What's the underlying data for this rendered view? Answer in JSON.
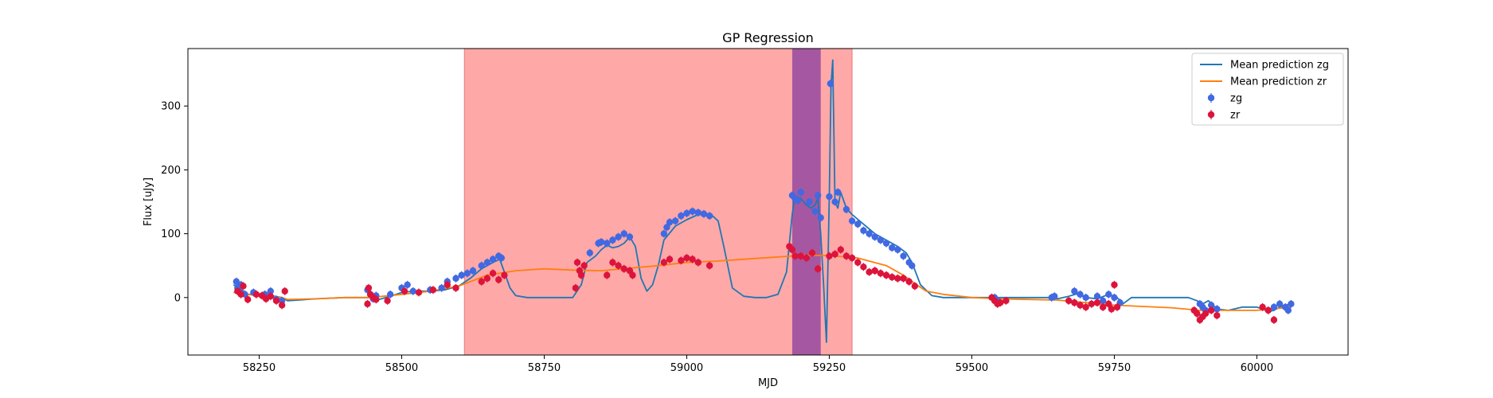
{
  "chart_data": {
    "type": "scatter",
    "title": "GP Regression",
    "xlabel": "MJD",
    "ylabel": "Flux [uJy]",
    "xlim": [
      58125,
      60160
    ],
    "ylim": [
      -90,
      390
    ],
    "xticks": [
      58250,
      58500,
      58750,
      59000,
      59250,
      59500,
      59750,
      60000
    ],
    "yticks": [
      0,
      100,
      200,
      300
    ],
    "grid": false,
    "legend_position": "top-right",
    "colors": {
      "zg_line": "#1f77b4",
      "zr_line": "#ff7f0e",
      "zg_points": "#4169e1",
      "zr_points": "#dc143c",
      "span_red": "#ff6666",
      "span_purple": "#9b4fa0"
    },
    "shaded_regions": [
      {
        "x0": 58610,
        "x1": 59290,
        "color": "#ff9999"
      },
      {
        "x0": 59185,
        "x1": 59235,
        "color": "#9b4fa0"
      }
    ],
    "legend": [
      {
        "label": "Mean prediction zg",
        "kind": "line",
        "color": "#1f77b4"
      },
      {
        "label": "Mean prediction zr",
        "kind": "line",
        "color": "#ff7f0e"
      },
      {
        "label": "zg",
        "kind": "errorbar",
        "color": "#4169e1"
      },
      {
        "label": "zr",
        "kind": "errorbar",
        "color": "#dc143c"
      }
    ],
    "series": [
      {
        "name": "Mean prediction zg",
        "kind": "line",
        "color": "#1f77b4",
        "x": [
          58205,
          58215,
          58230,
          58250,
          58270,
          58290,
          58300,
          58350,
          58400,
          58445,
          58460,
          58480,
          58500,
          58520,
          58550,
          58575,
          58600,
          58620,
          58640,
          58660,
          58672,
          58680,
          58690,
          58700,
          58720,
          58750,
          58780,
          58800,
          58815,
          58825,
          58840,
          58850,
          58860,
          58870,
          58880,
          58890,
          58900,
          58910,
          58920,
          58930,
          58940,
          58950,
          58960,
          58980,
          59000,
          59020,
          59035,
          59045,
          59055,
          59065,
          59080,
          59100,
          59120,
          59140,
          59160,
          59175,
          59185,
          59190,
          59200,
          59210,
          59218,
          59225,
          59230,
          59235,
          59240,
          59245,
          59250,
          59253,
          59256,
          59260,
          59265,
          59270,
          59280,
          59290,
          59310,
          59330,
          59350,
          59370,
          59385,
          59395,
          59410,
          59430,
          59450,
          59480,
          59500,
          59540,
          59600,
          59640,
          59650,
          59670,
          59685,
          59700,
          59720,
          59740,
          59755,
          59765,
          59780,
          59800,
          59850,
          59880,
          59895,
          59905,
          59915,
          59930,
          59950,
          59975,
          60000,
          60010,
          60020,
          60030,
          60040,
          60050,
          60060
        ],
        "y": [
          20,
          15,
          5,
          5,
          3,
          0,
          -5,
          -2,
          0,
          0,
          -3,
          2,
          8,
          10,
          10,
          12,
          18,
          30,
          45,
          55,
          60,
          40,
          15,
          3,
          0,
          0,
          0,
          0,
          20,
          55,
          65,
          75,
          82,
          78,
          80,
          85,
          95,
          80,
          30,
          10,
          20,
          50,
          90,
          112,
          122,
          130,
          130,
          128,
          120,
          80,
          15,
          2,
          0,
          0,
          5,
          40,
          130,
          160,
          155,
          145,
          140,
          145,
          155,
          100,
          20,
          -70,
          160,
          330,
          372,
          150,
          140,
          165,
          140,
          130,
          115,
          100,
          90,
          80,
          70,
          55,
          20,
          3,
          0,
          0,
          0,
          0,
          0,
          0,
          -2,
          2,
          6,
          0,
          -2,
          5,
          0,
          -10,
          0,
          0,
          0,
          0,
          -5,
          -10,
          -5,
          -18,
          -20,
          -15,
          -15,
          -18,
          -22,
          -20,
          -15,
          -12,
          -10
        ]
      },
      {
        "name": "Mean prediction zr",
        "kind": "line",
        "color": "#ff7f0e",
        "x": [
          58205,
          58230,
          58260,
          58290,
          58300,
          58350,
          58400,
          58445,
          58500,
          58550,
          58600,
          58650,
          58700,
          58750,
          58800,
          58850,
          58900,
          58950,
          59000,
          59050,
          59100,
          59150,
          59200,
          59250,
          59300,
          59350,
          59380,
          59400,
          59420,
          59450,
          59500,
          59550,
          59600,
          59650,
          59700,
          59750,
          59800,
          59850,
          59900,
          59950,
          60000,
          60060
        ],
        "y": [
          8,
          5,
          2,
          0,
          -3,
          -2,
          0,
          0,
          5,
          10,
          18,
          35,
          42,
          45,
          43,
          42,
          46,
          50,
          55,
          57,
          60,
          63,
          66,
          66,
          62,
          50,
          35,
          22,
          10,
          5,
          0,
          -2,
          -3,
          -4,
          -8,
          -12,
          -14,
          -16,
          -20,
          -20,
          -20,
          -15
        ]
      },
      {
        "name": "zg",
        "kind": "errorbar",
        "color": "#4169e1",
        "x": [
          58210,
          58212,
          58215,
          58218,
          58225,
          58240,
          58260,
          58270,
          58280,
          58290,
          58440,
          58445,
          58450,
          58455,
          58480,
          58500,
          58510,
          58520,
          58550,
          58570,
          58580,
          58595,
          58605,
          58615,
          58625,
          58640,
          58650,
          58660,
          58670,
          58675,
          58830,
          58845,
          58850,
          58860,
          58870,
          58880,
          58890,
          58900,
          58960,
          58965,
          58970,
          58980,
          58990,
          59000,
          59010,
          59020,
          59030,
          59040,
          59185,
          59190,
          59195,
          59200,
          59215,
          59225,
          59230,
          59235,
          59250,
          59252,
          59260,
          59265,
          59280,
          59290,
          59300,
          59310,
          59320,
          59330,
          59340,
          59350,
          59360,
          59370,
          59380,
          59390,
          59395,
          59540,
          59545,
          59640,
          59645,
          59680,
          59690,
          59700,
          59720,
          59730,
          59740,
          59750,
          59760,
          59900,
          59905,
          59910,
          59920,
          59930,
          60030,
          60040,
          60050,
          60055,
          60060
        ],
        "y": [
          25,
          15,
          10,
          20,
          5,
          8,
          5,
          10,
          -3,
          -5,
          12,
          5,
          -2,
          3,
          5,
          15,
          20,
          10,
          12,
          15,
          25,
          30,
          35,
          38,
          42,
          50,
          55,
          60,
          65,
          62,
          70,
          85,
          87,
          85,
          90,
          95,
          100,
          95,
          100,
          110,
          118,
          120,
          128,
          132,
          135,
          133,
          131,
          128,
          160,
          155,
          152,
          165,
          150,
          135,
          160,
          125,
          158,
          335,
          150,
          165,
          138,
          120,
          115,
          105,
          100,
          95,
          90,
          85,
          78,
          75,
          65,
          55,
          50,
          0,
          -5,
          0,
          2,
          10,
          5,
          0,
          2,
          -5,
          5,
          0,
          -8,
          -10,
          -15,
          -20,
          -12,
          -18,
          -15,
          -10,
          -15,
          -20,
          -10
        ]
      },
      {
        "name": "zr",
        "kind": "errorbar",
        "color": "#dc143c",
        "x": [
          58212,
          58218,
          58222,
          58230,
          58245,
          58255,
          58262,
          58270,
          58280,
          58290,
          58295,
          58440,
          58442,
          58445,
          58450,
          58455,
          58475,
          58505,
          58530,
          58555,
          58580,
          58595,
          58640,
          58650,
          58660,
          58670,
          58680,
          58805,
          58808,
          58812,
          58815,
          58820,
          58860,
          58870,
          58880,
          58890,
          58900,
          58905,
          58960,
          58970,
          58990,
          59000,
          59010,
          59020,
          59040,
          59180,
          59185,
          59190,
          59200,
          59210,
          59220,
          59230,
          59250,
          59260,
          59270,
          59280,
          59290,
          59300,
          59310,
          59320,
          59330,
          59340,
          59350,
          59360,
          59370,
          59380,
          59390,
          59400,
          59535,
          59540,
          59545,
          59550,
          59560,
          59670,
          59680,
          59690,
          59700,
          59710,
          59720,
          59730,
          59740,
          59745,
          59750,
          59755,
          59890,
          59895,
          59900,
          59905,
          59910,
          59920,
          59930,
          60010,
          60020,
          60030
        ],
        "y": [
          10,
          5,
          18,
          -3,
          5,
          3,
          -2,
          2,
          -5,
          -12,
          10,
          -10,
          15,
          5,
          0,
          -3,
          -5,
          10,
          8,
          12,
          20,
          15,
          25,
          30,
          38,
          28,
          35,
          15,
          55,
          42,
          35,
          50,
          35,
          55,
          50,
          45,
          42,
          35,
          55,
          60,
          58,
          62,
          60,
          55,
          50,
          80,
          75,
          65,
          65,
          62,
          70,
          45,
          65,
          68,
          75,
          65,
          62,
          55,
          48,
          40,
          42,
          38,
          35,
          32,
          30,
          30,
          25,
          18,
          0,
          -5,
          -10,
          -8,
          -5,
          -5,
          -8,
          -12,
          -15,
          -10,
          -8,
          -15,
          -10,
          -18,
          20,
          -15,
          -20,
          -25,
          -35,
          -30,
          -25,
          -20,
          -28,
          -15,
          -20,
          -35
        ]
      }
    ]
  }
}
